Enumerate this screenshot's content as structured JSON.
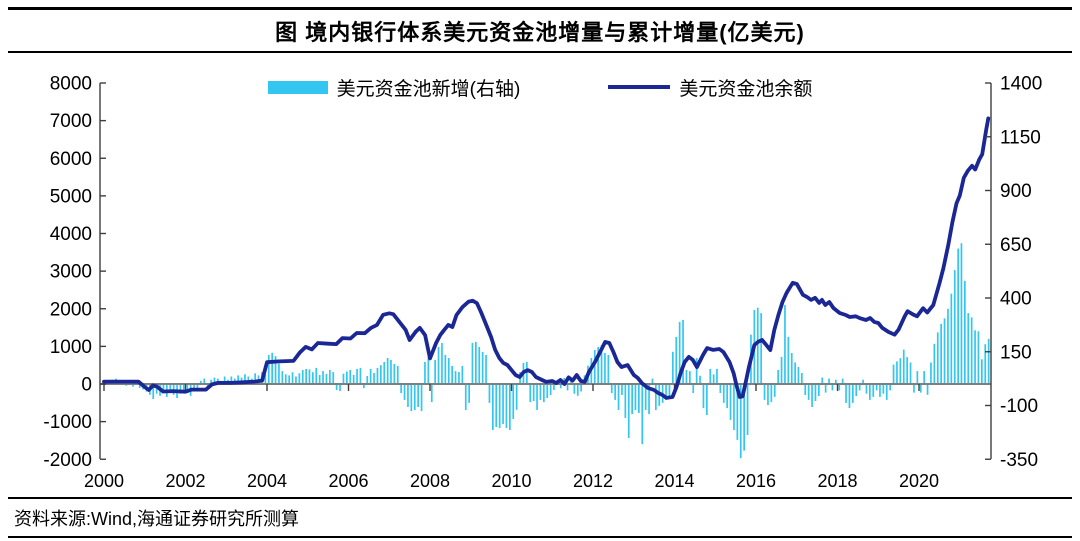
{
  "page": {
    "title": "图 境内银行体系美元资金池增量与累计增量(亿美元)",
    "source": "资料来源:Wind,海通证券研究所测算"
  },
  "chart_data": {
    "type": "bar+line combo, dual axis",
    "title": "图 境内银行体系美元资金池增量与累计增量(亿美元)",
    "legend_position": "top",
    "grid": false,
    "legend": [
      {
        "label": "美元资金池新增(右轴)",
        "type": "bar",
        "color": "#33C6F0",
        "axis": "right"
      },
      {
        "label": "美元资金池余额",
        "type": "line",
        "color": "#1B2795",
        "axis": "left"
      }
    ],
    "left_axis": {
      "ticks": [
        8000,
        7000,
        6000,
        5000,
        4000,
        3000,
        2000,
        1000,
        0,
        -1000,
        -2000
      ],
      "min": -2000,
      "max": 8000
    },
    "right_axis": {
      "ticks": [
        1400,
        1150,
        900,
        650,
        400,
        150,
        -100,
        -350
      ],
      "min": -350,
      "max": 1400
    },
    "x_axis": {
      "tick_years": [
        2000,
        2002,
        2004,
        2006,
        2008,
        2010,
        2012,
        2014,
        2016,
        2018,
        2020
      ],
      "start": 2000,
      "end": 2021.77
    },
    "axis_colors": {
      "axis_line": "#3f3f3f",
      "zero_line": "#7f7f7f"
    },
    "line_series": {
      "name": "美元资金池余额",
      "axis": "left",
      "points": [
        [
          2000.0,
          60
        ],
        [
          2000.4,
          65
        ],
        [
          2000.85,
          60
        ],
        [
          2001.0,
          -80
        ],
        [
          2001.1,
          -160
        ],
        [
          2001.2,
          -40
        ],
        [
          2001.3,
          -70
        ],
        [
          2001.45,
          -200
        ],
        [
          2001.7,
          -190
        ],
        [
          2002.0,
          -205
        ],
        [
          2002.15,
          -150
        ],
        [
          2002.5,
          -150
        ],
        [
          2002.65,
          -10
        ],
        [
          2002.8,
          30
        ],
        [
          2003.1,
          30
        ],
        [
          2003.4,
          45
        ],
        [
          2003.7,
          65
        ],
        [
          2003.88,
          90
        ],
        [
          2004.0,
          580
        ],
        [
          2004.3,
          600
        ],
        [
          2004.65,
          615
        ],
        [
          2004.8,
          830
        ],
        [
          2004.95,
          985
        ],
        [
          2005.1,
          920
        ],
        [
          2005.25,
          1090
        ],
        [
          2005.5,
          1070
        ],
        [
          2005.7,
          1060
        ],
        [
          2005.85,
          1220
        ],
        [
          2006.05,
          1210
        ],
        [
          2006.2,
          1355
        ],
        [
          2006.4,
          1350
        ],
        [
          2006.55,
          1490
        ],
        [
          2006.7,
          1570
        ],
        [
          2006.85,
          1840
        ],
        [
          2007.0,
          1880
        ],
        [
          2007.1,
          1855
        ],
        [
          2007.25,
          1650
        ],
        [
          2007.4,
          1440
        ],
        [
          2007.5,
          1170
        ],
        [
          2007.65,
          1390
        ],
        [
          2007.75,
          1490
        ],
        [
          2007.88,
          1300
        ],
        [
          2008.0,
          680
        ],
        [
          2008.15,
          1090
        ],
        [
          2008.25,
          1300
        ],
        [
          2008.35,
          1440
        ],
        [
          2008.45,
          1570
        ],
        [
          2008.55,
          1515
        ],
        [
          2008.65,
          1835
        ],
        [
          2008.8,
          2050
        ],
        [
          2008.95,
          2190
        ],
        [
          2009.05,
          2210
        ],
        [
          2009.15,
          2150
        ],
        [
          2009.25,
          1915
        ],
        [
          2009.35,
          1650
        ],
        [
          2009.5,
          1250
        ],
        [
          2009.6,
          905
        ],
        [
          2009.7,
          690
        ],
        [
          2009.8,
          560
        ],
        [
          2009.9,
          505
        ],
        [
          2010.0,
          370
        ],
        [
          2010.1,
          240
        ],
        [
          2010.2,
          185
        ],
        [
          2010.3,
          320
        ],
        [
          2010.4,
          370
        ],
        [
          2010.5,
          320
        ],
        [
          2010.6,
          185
        ],
        [
          2010.75,
          105
        ],
        [
          2010.85,
          55
        ],
        [
          2011.0,
          80
        ],
        [
          2011.1,
          25
        ],
        [
          2011.2,
          105
        ],
        [
          2011.3,
          0
        ],
        [
          2011.4,
          175
        ],
        [
          2011.5,
          90
        ],
        [
          2011.6,
          240
        ],
        [
          2011.7,
          80
        ],
        [
          2011.8,
          55
        ],
        [
          2011.9,
          320
        ],
        [
          2012.05,
          585
        ],
        [
          2012.2,
          905
        ],
        [
          2012.3,
          1120
        ],
        [
          2012.4,
          1090
        ],
        [
          2012.5,
          850
        ],
        [
          2012.6,
          585
        ],
        [
          2012.7,
          450
        ],
        [
          2012.85,
          505
        ],
        [
          2013.0,
          240
        ],
        [
          2013.1,
          160
        ],
        [
          2013.2,
          25
        ],
        [
          2013.35,
          -105
        ],
        [
          2013.5,
          -160
        ],
        [
          2013.6,
          -240
        ],
        [
          2013.7,
          -290
        ],
        [
          2013.8,
          -370
        ],
        [
          2013.95,
          -345
        ],
        [
          2014.05,
          -80
        ],
        [
          2014.15,
          290
        ],
        [
          2014.25,
          585
        ],
        [
          2014.35,
          720
        ],
        [
          2014.45,
          640
        ],
        [
          2014.55,
          450
        ],
        [
          2014.7,
          770
        ],
        [
          2014.8,
          955
        ],
        [
          2014.95,
          905
        ],
        [
          2015.1,
          930
        ],
        [
          2015.2,
          850
        ],
        [
          2015.35,
          585
        ],
        [
          2015.45,
          290
        ],
        [
          2015.52,
          -25
        ],
        [
          2015.6,
          -345
        ],
        [
          2015.67,
          -330
        ],
        [
          2015.75,
          55
        ],
        [
          2015.82,
          425
        ],
        [
          2015.9,
          770
        ],
        [
          2015.96,
          1040
        ],
        [
          2016.05,
          1120
        ],
        [
          2016.15,
          1170
        ],
        [
          2016.25,
          1040
        ],
        [
          2016.35,
          900
        ],
        [
          2016.45,
          1435
        ],
        [
          2016.55,
          1835
        ],
        [
          2016.65,
          2180
        ],
        [
          2016.75,
          2420
        ],
        [
          2016.9,
          2690
        ],
        [
          2017.0,
          2660
        ],
        [
          2017.15,
          2370
        ],
        [
          2017.25,
          2315
        ],
        [
          2017.35,
          2235
        ],
        [
          2017.45,
          2290
        ],
        [
          2017.55,
          2155
        ],
        [
          2017.62,
          2235
        ],
        [
          2017.7,
          2100
        ],
        [
          2017.8,
          2180
        ],
        [
          2017.9,
          2020
        ],
        [
          2018.05,
          1890
        ],
        [
          2018.2,
          1835
        ],
        [
          2018.3,
          1780
        ],
        [
          2018.45,
          1800
        ],
        [
          2018.55,
          1750
        ],
        [
          2018.7,
          1700
        ],
        [
          2018.8,
          1755
        ],
        [
          2018.9,
          1650
        ],
        [
          2019.0,
          1620
        ],
        [
          2019.1,
          1490
        ],
        [
          2019.25,
          1385
        ],
        [
          2019.4,
          1310
        ],
        [
          2019.5,
          1445
        ],
        [
          2019.65,
          1800
        ],
        [
          2019.72,
          1935
        ],
        [
          2019.85,
          1850
        ],
        [
          2019.95,
          1800
        ],
        [
          2020.1,
          2015
        ],
        [
          2020.2,
          1900
        ],
        [
          2020.35,
          2100
        ],
        [
          2020.5,
          2670
        ],
        [
          2020.6,
          3080
        ],
        [
          2020.72,
          3700
        ],
        [
          2020.82,
          4300
        ],
        [
          2020.92,
          4800
        ],
        [
          2021.0,
          5010
        ],
        [
          2021.1,
          5480
        ],
        [
          2021.2,
          5670
        ],
        [
          2021.3,
          5800
        ],
        [
          2021.38,
          5700
        ],
        [
          2021.48,
          5970
        ],
        [
          2021.55,
          6105
        ],
        [
          2021.6,
          6430
        ],
        [
          2021.65,
          6760
        ],
        [
          2021.7,
          7060
        ]
      ]
    },
    "bar_series": {
      "name": "美元资金池新增(右轴)",
      "axis": "right",
      "monthly_by_year": {
        "2000": [
          15,
          8,
          20,
          25,
          18,
          10,
          -8,
          8,
          -12,
          5,
          -18,
          -25
        ],
        "2001": [
          -35,
          -50,
          -70,
          -45,
          -55,
          -40,
          -60,
          -35,
          -50,
          -65,
          -45,
          -30
        ],
        "2002": [
          -40,
          -55,
          -35,
          -20,
          15,
          25,
          -15,
          20,
          30,
          25,
          15,
          35
        ],
        "2003": [
          20,
          35,
          25,
          40,
          30,
          45,
          35,
          25,
          50,
          40,
          55,
          45
        ],
        "2004": [
          135,
          145,
          130,
          95,
          60,
          45,
          40,
          55,
          35,
          50,
          65,
          70
        ],
        "2005": [
          68,
          55,
          75,
          42,
          60,
          47,
          65,
          56,
          -28,
          -33,
          48,
          58
        ],
        "2006": [
          65,
          42,
          70,
          75,
          -19,
          37,
          70,
          51,
          75,
          88,
          103,
          121
        ],
        "2007": [
          112,
          93,
          84,
          -42,
          -74,
          -107,
          -126,
          -121,
          -107,
          -126,
          103,
          126
        ],
        "2008": [
          -84,
          112,
          172,
          191,
          135,
          121,
          84,
          60,
          56,
          84,
          -121,
          -88
        ],
        "2009": [
          191,
          196,
          172,
          149,
          135,
          -88,
          -214,
          -200,
          -205,
          -186,
          -205,
          -214
        ],
        "2010": [
          -163,
          -120,
          56,
          98,
          103,
          -84,
          -79,
          -121,
          -74,
          -84,
          -65,
          -51
        ],
        "2011": [
          -28,
          20,
          -20,
          28,
          -30,
          25,
          -45,
          -55,
          -35,
          40,
          85,
          121
        ],
        "2012": [
          158,
          172,
          181,
          144,
          135,
          -42,
          -74,
          -121,
          -51,
          -158,
          -251,
          -140
        ],
        "2013": [
          -121,
          -135,
          -280,
          -121,
          -140,
          25,
          -121,
          -102,
          -88,
          -74,
          -60,
          150
        ],
        "2014": [
          219,
          289,
          298,
          65,
          60,
          -42,
          121,
          38,
          -112,
          -144,
          70,
          45
        ],
        "2015": [
          70,
          -42,
          -88,
          -112,
          -167,
          -214,
          -260,
          -345,
          -310,
          -237,
          230,
          344
        ],
        "2016": [
          355,
          330,
          -74,
          -98,
          -84,
          -60,
          65,
          126,
          367,
          219,
          144,
          100
        ],
        "2017": [
          79,
          51,
          -51,
          -74,
          -107,
          -79,
          -56,
          30,
          -40,
          25,
          -30,
          20
        ],
        "2018": [
          -30,
          25,
          -88,
          -112,
          -88,
          -56,
          -30,
          20,
          -45,
          -74,
          -60,
          -30
        ],
        "2019": [
          -60,
          -45,
          -74,
          -30,
          90,
          105,
          120,
          160,
          125,
          100,
          -40,
          60
        ],
        "2020": [
          -40,
          60,
          -50,
          100,
          187,
          240,
          280,
          305,
          350,
          420,
          530,
          630
        ],
        "2021": [
          655,
          480,
          330,
          310,
          250,
          245,
          115,
          185,
          210
        ]
      }
    }
  }
}
